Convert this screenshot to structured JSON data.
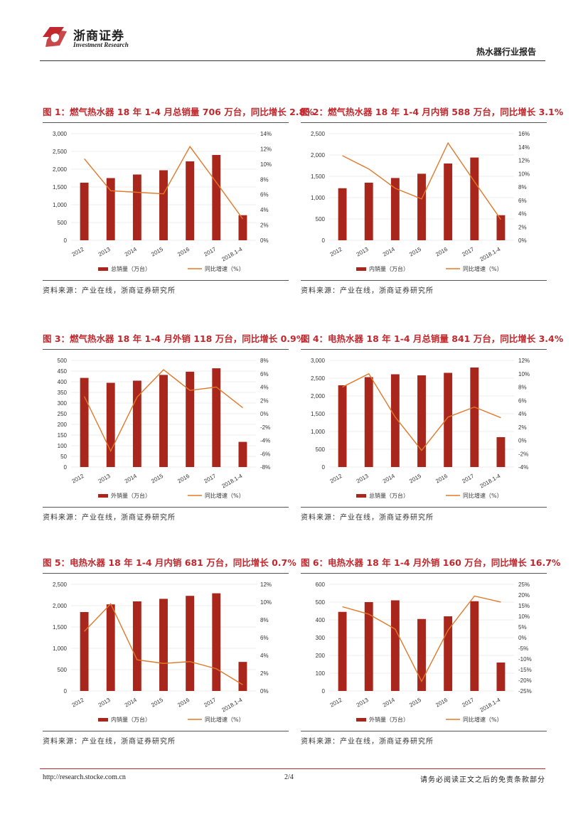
{
  "header": {
    "company_cn": "浙商证券",
    "company_en": "Investment Research",
    "report_title": "热水器行业报告"
  },
  "footer": {
    "url": "http://research.stocke.com.cn",
    "page": "2/4",
    "disclaimer": "请务必阅读正文之后的免责条款部分"
  },
  "colors": {
    "bar": "#a8261b",
    "line": "#e0782a",
    "title": "#c0282d"
  },
  "charts": [
    {
      "title": "图 1：燃气热水器 18 年 1-4 月总销量 706 万台，同比增长 2.8%",
      "source": "资料来源：产业在线，浙商证券研究所",
      "legend_bar": "总销量（万台）",
      "legend_line": "同比增速（%）"
    },
    {
      "title": "图 2：燃气热水器 18 年 1-4 月内销 588 万台，同比增长 3.1%",
      "source": "资料来源：产业在线，浙商证券研究所",
      "legend_bar": "内销量（万台）",
      "legend_line": "同比增速（%）"
    },
    {
      "title": "图 3：燃气热水器 18 年 1-4 月外销 118 万台，同比增长 0.9%",
      "source": "资料来源：产业在线，浙商证券研究所",
      "legend_bar": "外销量（万台）",
      "legend_line": "同比增速（%）"
    },
    {
      "title": "图 4：电热水器 18 年 1-4 月总销量 841 万台，同比增长 3.4%",
      "source": "资料来源：产业在线，浙商证券研究所",
      "legend_bar": "总销量（万台）",
      "legend_line": "同比增速（%）"
    },
    {
      "title": "图 5：电热水器 18 年 1-4 月内销 681 万台，同比增长 0.7%",
      "source": "资料来源：产业在线，浙商证券研究所",
      "legend_bar": "内销量（万台）",
      "legend_line": "同比增速（%）"
    },
    {
      "title": "图 6：电热水器 18 年 1-4 月外销 160 万台，同比增长 16.7%",
      "source": "资料来源：产业在线，浙商证券研究所",
      "legend_bar": "外销量（万台）",
      "legend_line": "同比增速（%）"
    }
  ],
  "chart_data": [
    {
      "type": "bar",
      "categories": [
        "2012",
        "2013",
        "2014",
        "2015",
        "2016",
        "2017",
        "2018.1-4"
      ],
      "series": [
        {
          "name": "总销量（万台）",
          "type": "bar",
          "axis": "left",
          "values": [
            1620,
            1750,
            1850,
            1970,
            2220,
            2400,
            706
          ]
        },
        {
          "name": "同比增速（%）",
          "type": "line",
          "axis": "right",
          "values": [
            10.7,
            6.5,
            6.3,
            6.1,
            12.3,
            7.6,
            2.8
          ]
        }
      ],
      "ylim": [
        0,
        3000
      ],
      "yticks": [
        0,
        500,
        1000,
        1500,
        2000,
        2500,
        3000
      ],
      "y2lim": [
        0,
        14
      ],
      "y2ticks": [
        0,
        2,
        4,
        6,
        8,
        10,
        12,
        14
      ],
      "legend": "bottom"
    },
    {
      "type": "bar",
      "categories": [
        "2012",
        "2013",
        "2014",
        "2015",
        "2016",
        "2017",
        "2018.1-4"
      ],
      "series": [
        {
          "name": "内销量（万台）",
          "type": "bar",
          "axis": "left",
          "values": [
            1220,
            1350,
            1460,
            1560,
            1800,
            1940,
            588
          ]
        },
        {
          "name": "同比增速（%）",
          "type": "line",
          "axis": "right",
          "values": [
            12.7,
            10.7,
            7.8,
            6.2,
            14.6,
            8.8,
            3.1
          ]
        }
      ],
      "ylim": [
        0,
        2500
      ],
      "yticks": [
        0,
        500,
        1000,
        1500,
        2000,
        2500
      ],
      "y2lim": [
        0,
        16
      ],
      "y2ticks": [
        0,
        2,
        4,
        6,
        8,
        10,
        12,
        14,
        16
      ],
      "legend": "bottom"
    },
    {
      "type": "bar",
      "categories": [
        "2012",
        "2013",
        "2014",
        "2015",
        "2016",
        "2017",
        "2018.1-4"
      ],
      "series": [
        {
          "name": "外销量（万台）",
          "type": "bar",
          "axis": "left",
          "values": [
            418,
            395,
            405,
            432,
            447,
            463,
            118
          ]
        },
        {
          "name": "同比增速（%）",
          "type": "line",
          "axis": "right",
          "values": [
            2.6,
            -5.6,
            2.5,
            6.6,
            3.5,
            4.0,
            0.9
          ]
        }
      ],
      "ylim": [
        0,
        500
      ],
      "yticks": [
        0,
        50,
        100,
        150,
        200,
        250,
        300,
        350,
        400,
        450,
        500
      ],
      "y2lim": [
        -8,
        8
      ],
      "y2ticks": [
        -8,
        -6,
        -4,
        -2,
        0,
        2,
        4,
        6,
        8
      ],
      "legend": "bottom"
    },
    {
      "type": "bar",
      "categories": [
        "2012",
        "2013",
        "2014",
        "2015",
        "2016",
        "2017",
        "2018.1-4"
      ],
      "series": [
        {
          "name": "总销量（万台）",
          "type": "bar",
          "axis": "left",
          "values": [
            2300,
            2530,
            2610,
            2580,
            2650,
            2800,
            841
          ]
        },
        {
          "name": "同比增速（%）",
          "type": "line",
          "axis": "right",
          "values": [
            8.0,
            10.0,
            3.5,
            -1.5,
            3.5,
            5.0,
            3.4
          ]
        }
      ],
      "ylim": [
        0,
        3000
      ],
      "yticks": [
        0,
        500,
        1000,
        1500,
        2000,
        2500,
        3000
      ],
      "y2lim": [
        -4,
        12
      ],
      "y2ticks": [
        -4,
        -2,
        0,
        2,
        4,
        6,
        8,
        10,
        12
      ],
      "legend": "bottom"
    },
    {
      "type": "bar",
      "categories": [
        "2012",
        "2013",
        "2014",
        "2015",
        "2016",
        "2017",
        "2018.1-4"
      ],
      "series": [
        {
          "name": "内销量（万台）",
          "type": "bar",
          "axis": "left",
          "values": [
            1850,
            2030,
            2100,
            2160,
            2230,
            2290,
            681
          ]
        },
        {
          "name": "同比增速（%）",
          "type": "line",
          "axis": "right",
          "values": [
            6.7,
            9.8,
            3.5,
            3.1,
            3.3,
            2.5,
            0.7
          ]
        }
      ],
      "ylim": [
        0,
        2500
      ],
      "yticks": [
        0,
        500,
        1000,
        1500,
        2000,
        2500
      ],
      "y2lim": [
        0,
        12
      ],
      "y2ticks": [
        0,
        2,
        4,
        6,
        8,
        10,
        12
      ],
      "legend": "bottom"
    },
    {
      "type": "bar",
      "categories": [
        "2012",
        "2013",
        "2014",
        "2015",
        "2016",
        "2017",
        "2018.1-4"
      ],
      "series": [
        {
          "name": "外销量（万台）",
          "type": "bar",
          "axis": "left",
          "values": [
            445,
            500,
            510,
            405,
            420,
            505,
            160
          ]
        },
        {
          "name": "同比增速（%）",
          "type": "line",
          "axis": "right",
          "values": [
            14.5,
            11.0,
            4.0,
            -20.5,
            3.5,
            19.5,
            16.7
          ]
        }
      ],
      "ylim": [
        0,
        600
      ],
      "yticks": [
        0,
        100,
        200,
        300,
        400,
        500,
        600
      ],
      "y2lim": [
        -25,
        25
      ],
      "y2ticks": [
        -25,
        -20,
        -15,
        -10,
        -5,
        0,
        5,
        10,
        15,
        20,
        25
      ],
      "legend": "bottom"
    }
  ]
}
